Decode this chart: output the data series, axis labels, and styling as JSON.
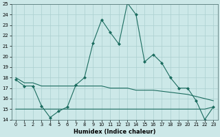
{
  "xlabel": "Humidex (Indice chaleur)",
  "x_values": [
    0,
    1,
    2,
    3,
    4,
    5,
    6,
    7,
    8,
    9,
    10,
    11,
    12,
    13,
    14,
    15,
    16,
    17,
    18,
    19,
    20,
    21,
    22,
    23
  ],
  "line_main": [
    17.8,
    17.2,
    17.2,
    15.3,
    14.2,
    14.8,
    15.2,
    17.3,
    18.0,
    21.3,
    23.5,
    22.3,
    21.2,
    25.1,
    24.0,
    19.5,
    20.2,
    19.4,
    18.0,
    17.0,
    17.0,
    15.8,
    14.0,
    15.2
  ],
  "line_upper_flat": [
    18.0,
    17.5,
    17.5,
    17.2,
    17.2,
    17.2,
    17.2,
    17.2,
    17.2,
    17.2,
    17.2,
    17.0,
    17.0,
    17.0,
    16.8,
    16.8,
    16.8,
    16.7,
    16.6,
    16.5,
    16.4,
    16.2,
    16.0,
    15.8
  ],
  "line_lower_flat": [
    15.0,
    15.0,
    15.0,
    15.0,
    15.0,
    15.0,
    15.0,
    15.0,
    15.0,
    15.0,
    15.0,
    15.0,
    15.0,
    15.0,
    15.0,
    15.0,
    15.0,
    15.0,
    15.0,
    15.0,
    15.0,
    15.0,
    15.0,
    15.2
  ],
  "ylim": [
    14,
    25
  ],
  "yticks": [
    14,
    15,
    16,
    17,
    18,
    19,
    20,
    21,
    22,
    23,
    24,
    25
  ],
  "xticks": [
    0,
    1,
    2,
    3,
    4,
    5,
    6,
    7,
    8,
    9,
    10,
    11,
    12,
    13,
    14,
    15,
    16,
    17,
    18,
    19,
    20,
    21,
    22,
    23
  ],
  "line_color": "#1a6b5e",
  "bg_color": "#cce8e8",
  "grid_color": "#aacfcf"
}
